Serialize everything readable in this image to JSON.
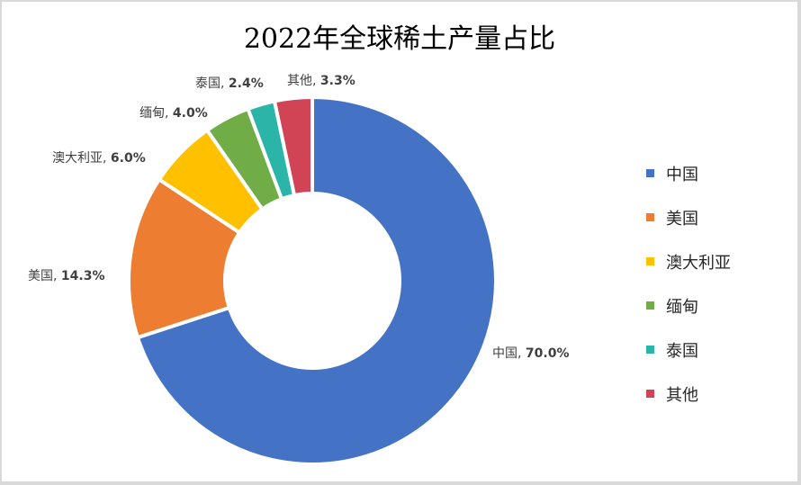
{
  "chart_data": {
    "type": "pie",
    "subtype": "donut",
    "title": "2022年全球稀土产量占比",
    "categories": [
      "中国",
      "美国",
      "澳大利亚",
      "缅甸",
      "泰国",
      "其他"
    ],
    "values": [
      70.0,
      14.3,
      6.0,
      4.0,
      2.4,
      3.3
    ],
    "unit": "%",
    "colors": [
      "#4472C4",
      "#ED7D31",
      "#FFC000",
      "#70AD47",
      "#2BB5A8",
      "#D04456"
    ],
    "data_labels": [
      "中国, 70.0%",
      "美国, 14.3%",
      "澳大利亚, 6.0%",
      "缅甸, 4.0%",
      "泰国, 2.4%",
      "其他, 3.3%"
    ],
    "legend_position": "right",
    "start_angle_deg": 0,
    "direction": "clockwise"
  },
  "title": "2022年全球稀土产量占比",
  "labels": [
    {
      "name": "中国",
      "pct": "70.0%"
    },
    {
      "name": "美国",
      "pct": "14.3%"
    },
    {
      "name": "澳大利亚",
      "pct": "6.0%"
    },
    {
      "name": "缅甸",
      "pct": "4.0%"
    },
    {
      "name": "泰国",
      "pct": "2.4%"
    },
    {
      "name": "其他",
      "pct": "3.3%"
    }
  ],
  "legend": [
    {
      "label": "中国",
      "color": "#4472C4"
    },
    {
      "label": "美国",
      "color": "#ED7D31"
    },
    {
      "label": "澳大利亚",
      "color": "#FFC000"
    },
    {
      "label": "缅甸",
      "color": "#70AD47"
    },
    {
      "label": "泰国",
      "color": "#2BB5A8"
    },
    {
      "label": "其他",
      "color": "#D04456"
    }
  ]
}
